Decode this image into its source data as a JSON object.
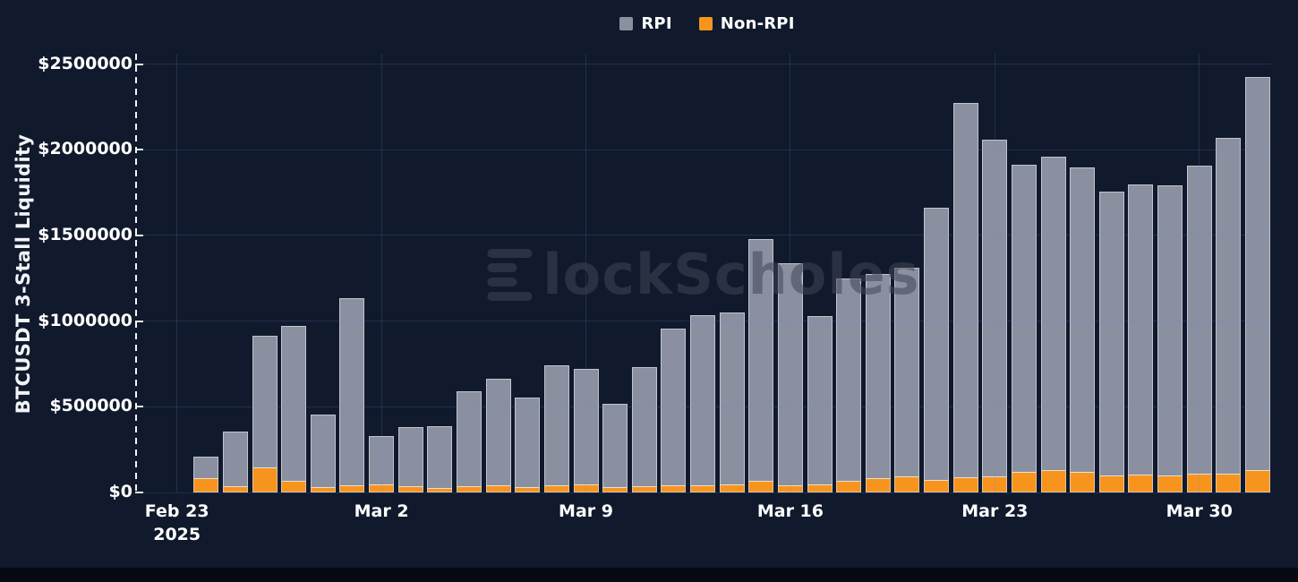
{
  "legend": {
    "items": [
      {
        "label": "RPI",
        "color": "#8A90A0"
      },
      {
        "label": "Non-RPI",
        "color": "#F7941E"
      }
    ]
  },
  "watermark": {
    "brand": "BlockScholes",
    "text_after_logo": "lockScholes"
  },
  "chart_data": {
    "type": "bar",
    "stacked": true,
    "title": "",
    "xlabel": "",
    "ylabel": "BTCUSDT 3-Stall Liquidity",
    "ylim": [
      0,
      2500000
    ],
    "grid": true,
    "legend_position": "top-center",
    "colors": {
      "rpi": "#8A90A0",
      "non_rpi": "#F7941E",
      "background": "#111A2C"
    },
    "series_names": [
      "RPI",
      "Non-RPI"
    ],
    "y_ticks": [
      {
        "value": 0,
        "label": "$0"
      },
      {
        "value": 500000,
        "label": "$500000"
      },
      {
        "value": 1000000,
        "label": "$1000000"
      },
      {
        "value": 1500000,
        "label": "$1500000"
      },
      {
        "value": 2000000,
        "label": "$2000000"
      },
      {
        "value": 2500000,
        "label": "$2500000"
      }
    ],
    "x_ticks": [
      {
        "day_offset": 0,
        "label": "Feb 23",
        "sublabel": "2025"
      },
      {
        "day_offset": 7,
        "label": "Mar 2",
        "sublabel": ""
      },
      {
        "day_offset": 14,
        "label": "Mar 9",
        "sublabel": ""
      },
      {
        "day_offset": 21,
        "label": "Mar 16",
        "sublabel": ""
      },
      {
        "day_offset": 28,
        "label": "Mar 23",
        "sublabel": ""
      },
      {
        "day_offset": 35,
        "label": "Mar 30",
        "sublabel": ""
      }
    ],
    "bars": [
      {
        "date": "Feb 24",
        "day_offset": 1,
        "rpi": 127000,
        "non_rpi": 84000
      },
      {
        "date": "Feb 25",
        "day_offset": 2,
        "rpi": 320000,
        "non_rpi": 37000
      },
      {
        "date": "Feb 26",
        "day_offset": 3,
        "rpi": 769000,
        "non_rpi": 145000
      },
      {
        "date": "Feb 27",
        "day_offset": 4,
        "rpi": 902000,
        "non_rpi": 69000
      },
      {
        "date": "Feb 28",
        "day_offset": 5,
        "rpi": 422000,
        "non_rpi": 34000
      },
      {
        "date": "Mar 1",
        "day_offset": 6,
        "rpi": 1092000,
        "non_rpi": 41000
      },
      {
        "date": "Mar 2",
        "day_offset": 7,
        "rpi": 283000,
        "non_rpi": 48000
      },
      {
        "date": "Mar 3",
        "day_offset": 8,
        "rpi": 348000,
        "non_rpi": 35000
      },
      {
        "date": "Mar 4",
        "day_offset": 9,
        "rpi": 362000,
        "non_rpi": 27000
      },
      {
        "date": "Mar 5",
        "day_offset": 10,
        "rpi": 558000,
        "non_rpi": 35000
      },
      {
        "date": "Mar 6",
        "day_offset": 11,
        "rpi": 624000,
        "non_rpi": 40000
      },
      {
        "date": "Mar 7",
        "day_offset": 12,
        "rpi": 526000,
        "non_rpi": 29000
      },
      {
        "date": "Mar 8",
        "day_offset": 13,
        "rpi": 704000,
        "non_rpi": 40000
      },
      {
        "date": "Mar 9",
        "day_offset": 14,
        "rpi": 677000,
        "non_rpi": 46000
      },
      {
        "date": "Mar 10",
        "day_offset": 15,
        "rpi": 489000,
        "non_rpi": 29000
      },
      {
        "date": "Mar 11",
        "day_offset": 16,
        "rpi": 699000,
        "non_rpi": 35000
      },
      {
        "date": "Mar 12",
        "day_offset": 17,
        "rpi": 915000,
        "non_rpi": 43000
      },
      {
        "date": "Mar 13",
        "day_offset": 18,
        "rpi": 993000,
        "non_rpi": 40000
      },
      {
        "date": "Mar 14",
        "day_offset": 19,
        "rpi": 1006000,
        "non_rpi": 45000
      },
      {
        "date": "Mar 15",
        "day_offset": 20,
        "rpi": 1410000,
        "non_rpi": 69000
      },
      {
        "date": "Mar 16",
        "day_offset": 21,
        "rpi": 1295000,
        "non_rpi": 40000
      },
      {
        "date": "Mar 17",
        "day_offset": 22,
        "rpi": 981000,
        "non_rpi": 48000
      },
      {
        "date": "Mar 18",
        "day_offset": 23,
        "rpi": 1182000,
        "non_rpi": 68000
      },
      {
        "date": "Mar 19",
        "day_offset": 24,
        "rpi": 1192000,
        "non_rpi": 82000
      },
      {
        "date": "Mar 20",
        "day_offset": 25,
        "rpi": 1220000,
        "non_rpi": 92000
      },
      {
        "date": "Mar 21",
        "day_offset": 26,
        "rpi": 1589000,
        "non_rpi": 74000
      },
      {
        "date": "Mar 22",
        "day_offset": 27,
        "rpi": 2185000,
        "non_rpi": 87000
      },
      {
        "date": "Mar 23",
        "day_offset": 28,
        "rpi": 1962000,
        "non_rpi": 95000
      },
      {
        "date": "Mar 24",
        "day_offset": 29,
        "rpi": 1788000,
        "non_rpi": 122000
      },
      {
        "date": "Mar 25",
        "day_offset": 30,
        "rpi": 1831000,
        "non_rpi": 129000
      },
      {
        "date": "Mar 26",
        "day_offset": 31,
        "rpi": 1774000,
        "non_rpi": 122000
      },
      {
        "date": "Mar 27",
        "day_offset": 32,
        "rpi": 1658000,
        "non_rpi": 99000
      },
      {
        "date": "Mar 28",
        "day_offset": 33,
        "rpi": 1693000,
        "non_rpi": 104000
      },
      {
        "date": "Mar 29",
        "day_offset": 34,
        "rpi": 1691000,
        "non_rpi": 99000
      },
      {
        "date": "Mar 30",
        "day_offset": 35,
        "rpi": 1795000,
        "non_rpi": 111000
      },
      {
        "date": "Mar 31",
        "day_offset": 36,
        "rpi": 1962000,
        "non_rpi": 108000
      },
      {
        "date": "Apr 1",
        "day_offset": 37,
        "rpi": 2296000,
        "non_rpi": 129000
      }
    ]
  }
}
